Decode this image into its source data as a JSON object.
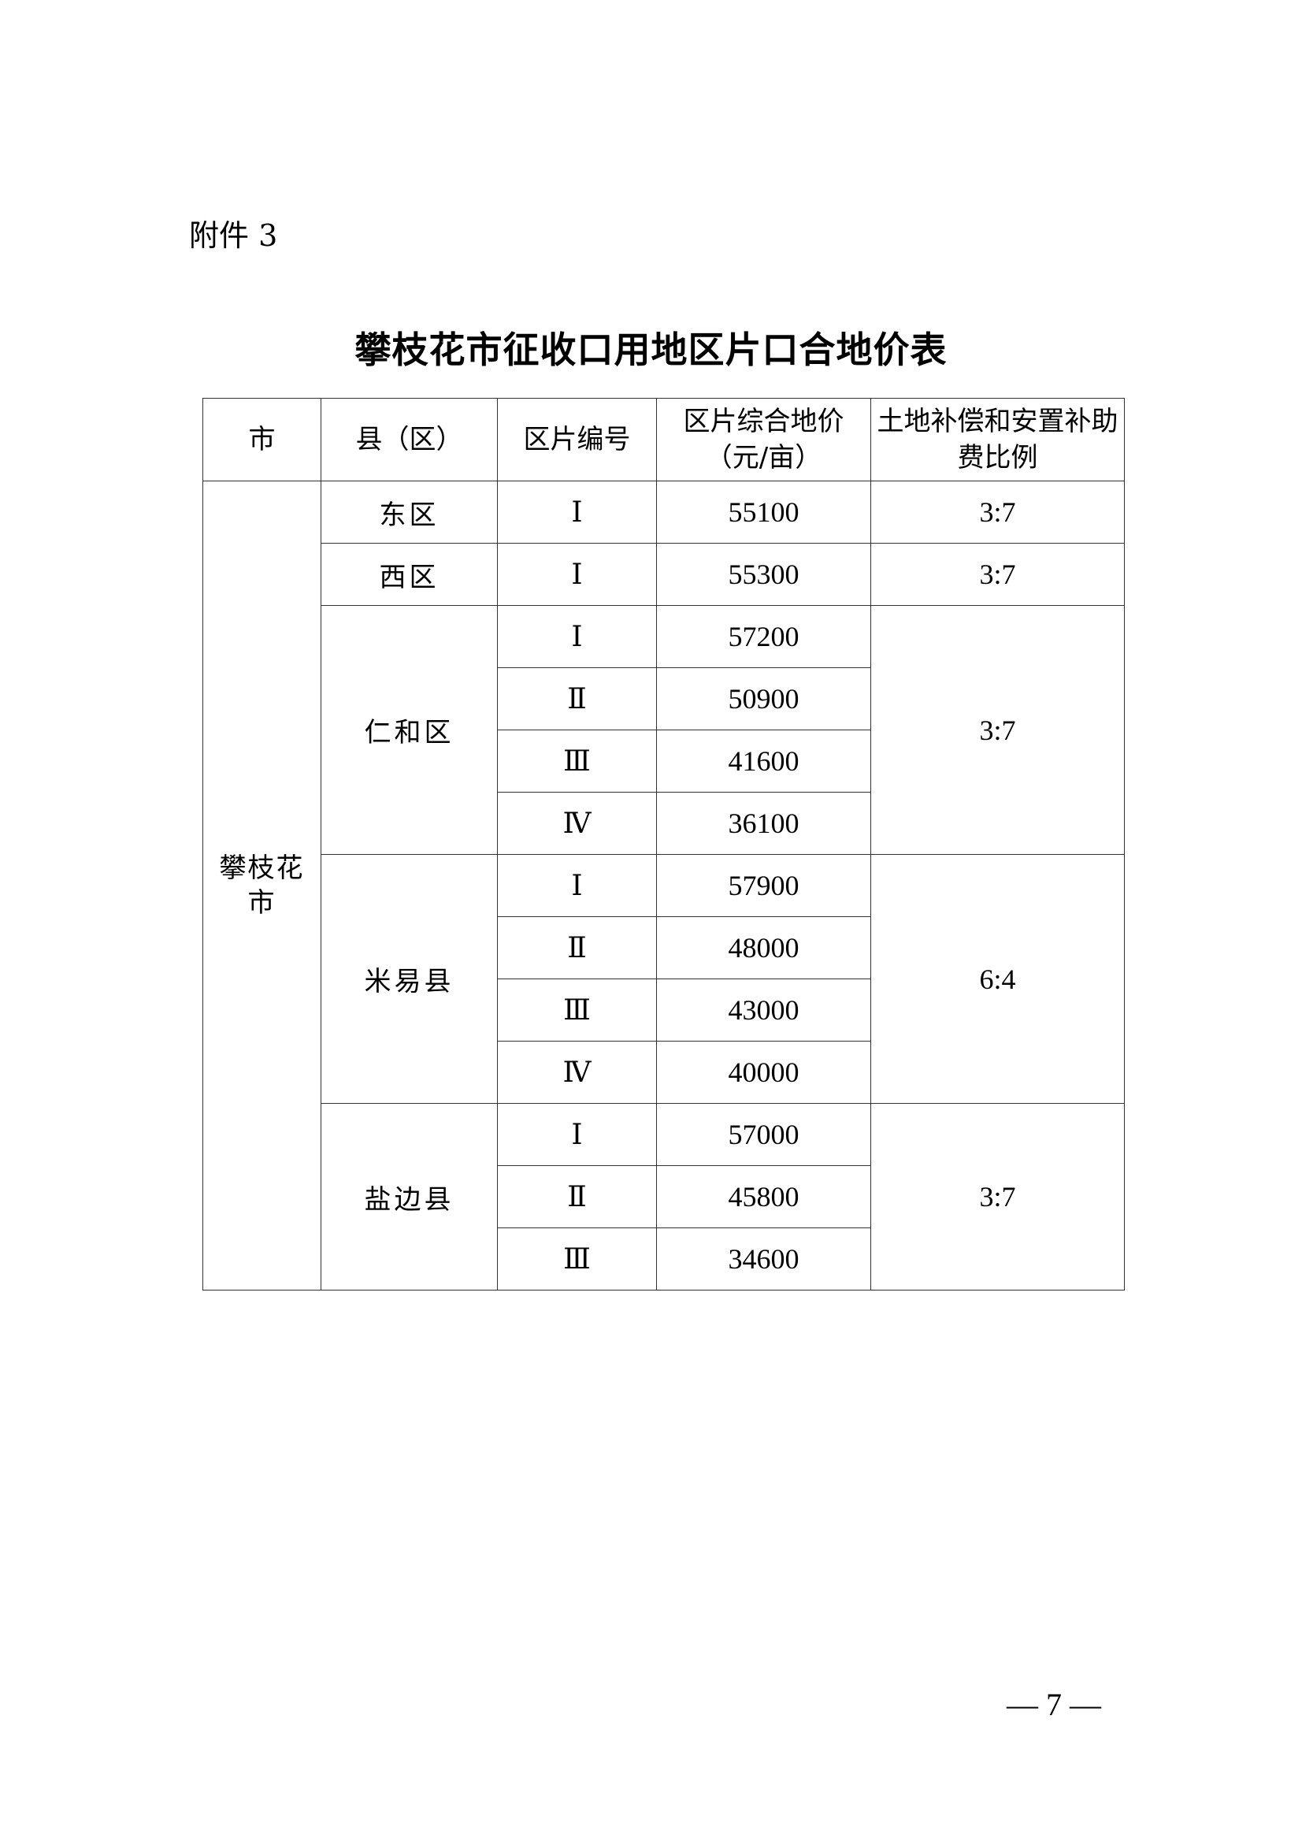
{
  "attachment_label": "附件 3",
  "title": "攀枝花市征收口用地区片口合地价表",
  "table": {
    "headers": [
      "市",
      "县（区）",
      "区片编号",
      "区片综合地价（元/亩）",
      "土地补偿和安置补助费比例"
    ],
    "city": "攀枝花市",
    "groups": [
      {
        "county": "东区",
        "ratio": "3:7",
        "rows": [
          {
            "zone": "Ⅰ",
            "price": "55100"
          }
        ]
      },
      {
        "county": "西区",
        "ratio": "3:7",
        "rows": [
          {
            "zone": "Ⅰ",
            "price": "55300"
          }
        ]
      },
      {
        "county": "仁和区",
        "ratio": "3:7",
        "rows": [
          {
            "zone": "Ⅰ",
            "price": "57200"
          },
          {
            "zone": "Ⅱ",
            "price": "50900"
          },
          {
            "zone": "Ⅲ",
            "price": "41600"
          },
          {
            "zone": "Ⅳ",
            "price": "36100"
          }
        ]
      },
      {
        "county": "米易县",
        "ratio": "6:4",
        "rows": [
          {
            "zone": "Ⅰ",
            "price": "57900"
          },
          {
            "zone": "Ⅱ",
            "price": "48000"
          },
          {
            "zone": "Ⅲ",
            "price": "43000"
          },
          {
            "zone": "Ⅳ",
            "price": "40000"
          }
        ]
      },
      {
        "county": "盐边县",
        "ratio": "3:7",
        "rows": [
          {
            "zone": "Ⅰ",
            "price": "57000"
          },
          {
            "zone": "Ⅱ",
            "price": "45800"
          },
          {
            "zone": "Ⅲ",
            "price": "34600"
          }
        ]
      }
    ]
  },
  "page_number": "— 7 —"
}
